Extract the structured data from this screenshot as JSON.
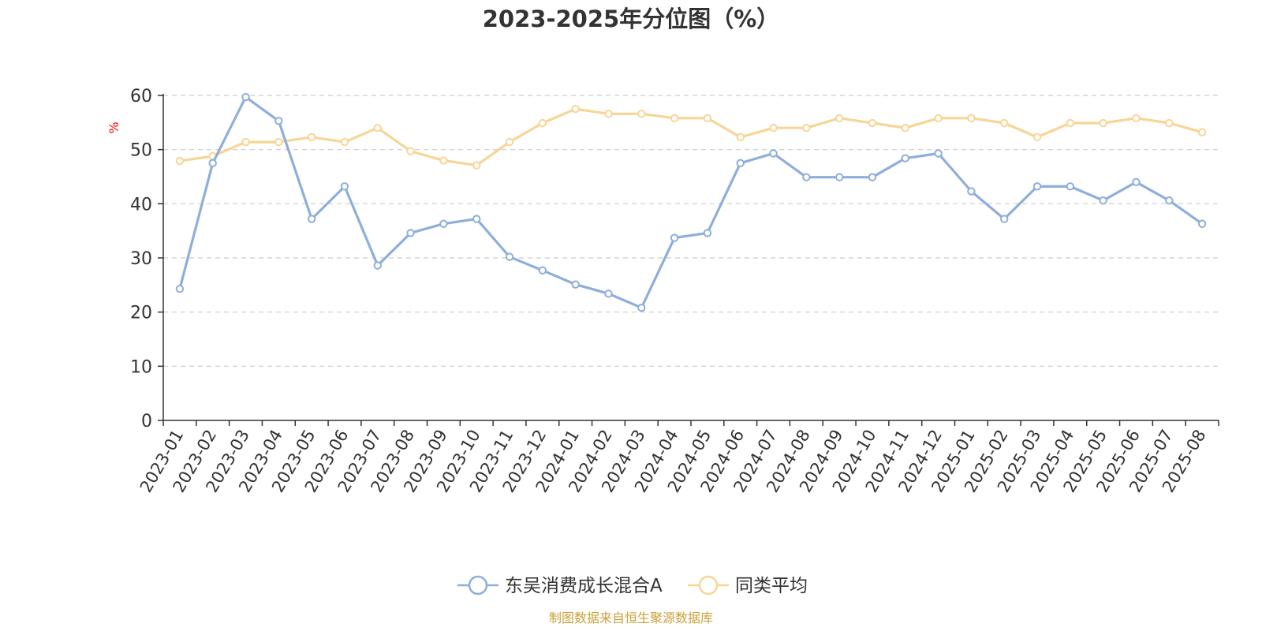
{
  "chart_data": {
    "type": "line",
    "title": "2023-2025年分位图（%）",
    "ylabel": "%",
    "xlabel": "",
    "ylim": [
      0,
      60
    ],
    "yticks": [
      0,
      10,
      20,
      30,
      40,
      50,
      60
    ],
    "grid": true,
    "legend_position": "bottom-center",
    "categories": [
      "2023-01",
      "2023-02",
      "2023-03",
      "2023-04",
      "2023-05",
      "2023-06",
      "2023-07",
      "2023-08",
      "2023-09",
      "2023-10",
      "2023-11",
      "2023-12",
      "2024-01",
      "2024-02",
      "2024-03",
      "2024-04",
      "2024-05",
      "2024-06",
      "2024-07",
      "2024-08",
      "2024-09",
      "2024-10",
      "2024-11",
      "2024-12",
      "2025-01",
      "2025-02",
      "2025-03",
      "2025-04",
      "2025-05",
      "2025-06",
      "2025-07",
      "2025-08"
    ],
    "series": [
      {
        "name": "东吴消费成长混合A",
        "color": "#8eaedb",
        "values": [
          24.3,
          47.5,
          59.7,
          55.3,
          37.2,
          43.2,
          28.6,
          34.6,
          36.3,
          37.2,
          30.2,
          27.7,
          25.1,
          23.4,
          20.8,
          33.7,
          34.6,
          47.5,
          49.3,
          44.9,
          44.9,
          44.9,
          48.4,
          49.3,
          42.3,
          37.2,
          43.2,
          43.2,
          40.6,
          44.0,
          40.6,
          36.3
        ]
      },
      {
        "name": "同类平均",
        "color": "#f8d595",
        "values": [
          47.9,
          48.8,
          51.4,
          51.4,
          52.3,
          51.4,
          54.0,
          49.7,
          48.0,
          47.1,
          51.4,
          54.9,
          57.5,
          56.6,
          56.6,
          55.8,
          55.8,
          52.3,
          54.0,
          54.0,
          55.8,
          54.9,
          54.0,
          55.8,
          55.8,
          54.9,
          52.3,
          54.9,
          54.9,
          55.8,
          54.9,
          53.2
        ]
      }
    ],
    "source": "制图数据来自恒生聚源数据库"
  },
  "colors": {
    "axis": "#333333",
    "grid": "#cccccc",
    "ylabel": "#ff0000",
    "source": "#c9a13b"
  }
}
